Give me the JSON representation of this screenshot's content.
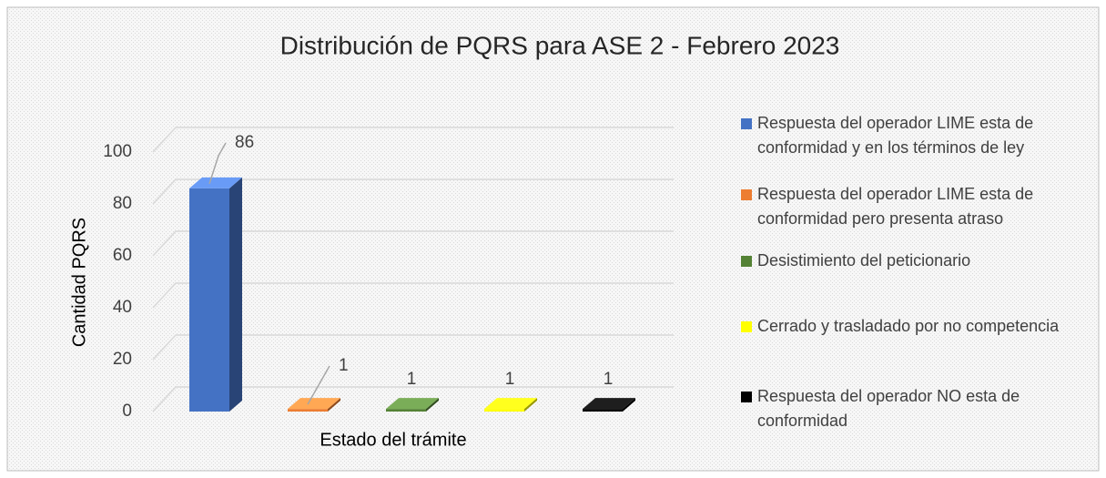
{
  "chart_data": {
    "type": "bar",
    "title": "Distribución de PQRS para ASE 2 - Febrero 2023",
    "x_label": "Estado del trámite",
    "y_label": "Cantidad PQRS",
    "categories": [
      null
    ],
    "series": [
      {
        "name": "Respuesta del operador LIME esta de conformidad y en los términos de ley",
        "color": "#4472c4",
        "values": [
          86
        ]
      },
      {
        "name": "Respuesta del operador LIME esta de conformidad pero presenta atraso",
        "color": "#ed7d31",
        "values": [
          1
        ]
      },
      {
        "name": "Desistimiento del peticionario",
        "color": "#548235",
        "values": [
          1
        ]
      },
      {
        "name": "Cerrado y trasladado por no competencia",
        "color": "#ffff00",
        "values": [
          1
        ]
      },
      {
        "name": "Respuesta del operador NO esta de conformidad",
        "color": "#000000",
        "values": [
          1
        ]
      }
    ],
    "ylim": [
      0,
      100
    ],
    "yticks": [
      0,
      20,
      40,
      60,
      80,
      100
    ],
    "grid": true,
    "legend": "right"
  }
}
